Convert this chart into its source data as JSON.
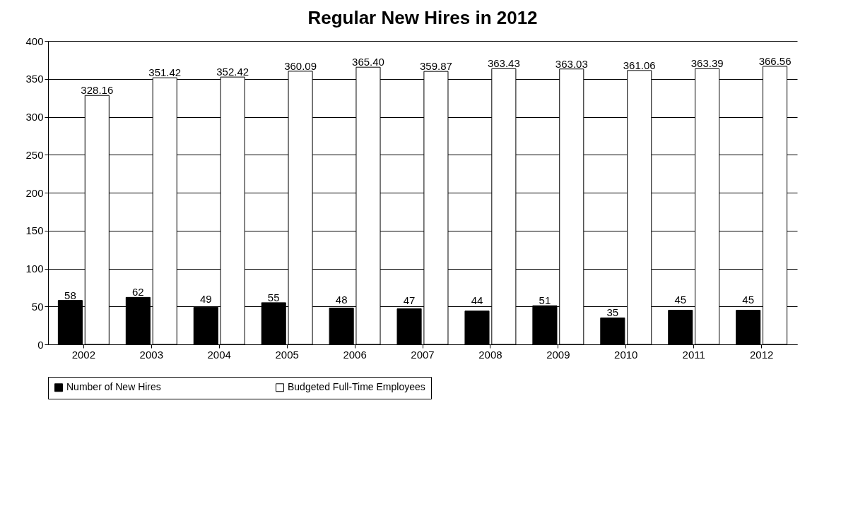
{
  "chart_data": {
    "type": "bar",
    "title": "Regular New Hires in 2012",
    "categories": [
      "2002",
      "2003",
      "2004",
      "2005",
      "2006",
      "2007",
      "2008",
      "2009",
      "2010",
      "2011",
      "2012"
    ],
    "series": [
      {
        "name": "Number of New Hires",
        "color": "#000000",
        "values": [
          58,
          62,
          49,
          55,
          48,
          47,
          44,
          51,
          35,
          45,
          45
        ],
        "value_labels": [
          "58",
          "62",
          "49",
          "55",
          "48",
          "47",
          "44",
          "51",
          "35",
          "45",
          "45"
        ]
      },
      {
        "name": "Budgeted Full-Time Employees",
        "color": "#ffffff",
        "values": [
          328.16,
          351.42,
          352.42,
          360.09,
          365.4,
          359.87,
          363.43,
          363.03,
          361.06,
          363.39,
          366.56
        ],
        "value_labels": [
          "328.16",
          "351.42",
          "352.42",
          "360.09",
          "365.40",
          "359.87",
          "363.43",
          "363.03",
          "361.06",
          "363.39",
          "366.56"
        ]
      }
    ],
    "ylim": [
      0,
      400
    ],
    "yticks": [
      0,
      50,
      100,
      150,
      200,
      250,
      300,
      350,
      400
    ],
    "grid": "y",
    "legend": "bottom"
  }
}
